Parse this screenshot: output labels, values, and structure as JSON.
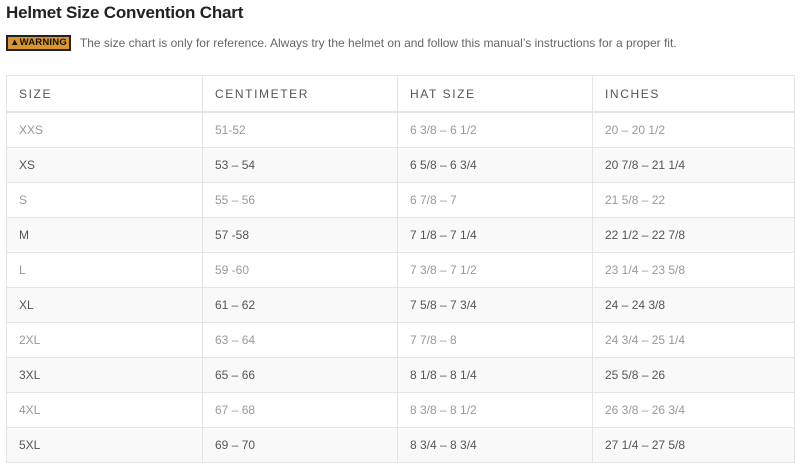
{
  "title": "Helmet Size Convention Chart",
  "warning": {
    "badge": "▲WARNING",
    "text": "The size chart is only for reference. Always try the helmet on and follow this manual’s instructions for a proper fit.",
    "color": "#d8962c"
  },
  "table": {
    "headers": [
      "SIZE",
      "CENTIMETER",
      "HAT SIZE",
      "INCHES"
    ],
    "rows": [
      [
        "XXS",
        "51-52",
        "6 3/8 – 6 1/2",
        "20 – 20 1/2"
      ],
      [
        "XS",
        "53 – 54",
        "6 5/8 – 6 3/4",
        "20 7/8 – 21 1/4"
      ],
      [
        "S",
        "55 – 56",
        "6 7/8 – 7",
        "21 5/8 – 22"
      ],
      [
        "M",
        "57 -58",
        "7 1/8 – 7 1/4",
        "22 1/2 – 22 7/8"
      ],
      [
        "L",
        "59 -60",
        "7 3/8 – 7 1/2",
        "23 1/4 – 23 5/8"
      ],
      [
        "XL",
        "61 – 62",
        "7 5/8 – 7 3/4",
        "24 – 24 3/8"
      ],
      [
        "2XL",
        "63 – 64",
        "7 7/8 – 8",
        "24 3/4 – 25 1/4"
      ],
      [
        "3XL",
        "65 – 66",
        "8 1/8 – 8 1/4",
        "25 5/8 – 26"
      ],
      [
        "4XL",
        "67 – 68",
        "8 3/8 – 8 1/2",
        "26 3/8 – 26 3/4"
      ],
      [
        "5XL",
        "69 – 70",
        "8 3/4 – 8 3/4",
        "27 1/4 – 27 5/8"
      ]
    ]
  }
}
